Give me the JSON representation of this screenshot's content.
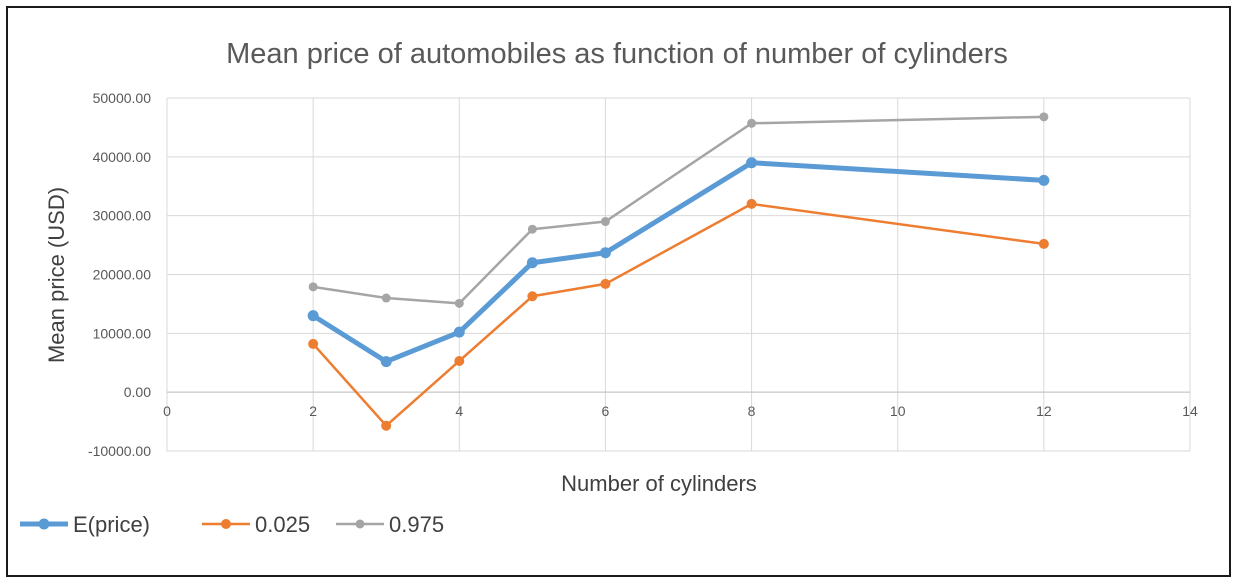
{
  "chart_data": {
    "type": "line",
    "title": "Mean price of automobiles as function of number of cylinders",
    "xlabel": "Number of cylinders",
    "ylabel": "Mean price (USD)",
    "xlim": [
      0,
      14
    ],
    "ylim": [
      -10000,
      50000
    ],
    "x_ticks": [
      "0",
      "2",
      "4",
      "6",
      "8",
      "10",
      "12",
      "14"
    ],
    "y_ticks": [
      "50000.00",
      "40000.00",
      "30000.00",
      "20000.00",
      "10000.00",
      "0.00",
      "-10000.00"
    ],
    "grid": true,
    "legend_position": "bottom-left",
    "x": [
      2,
      3,
      4,
      5,
      6,
      8,
      12
    ],
    "series": [
      {
        "name": "E(price)",
        "color": "#5b9bd5",
        "values": [
          13000,
          5200,
          10200,
          22000,
          23700,
          39000,
          36000
        ]
      },
      {
        "name": "0.025",
        "color": "#ed7d31",
        "values": [
          8200,
          -5700,
          5300,
          16300,
          18400,
          32000,
          25200
        ]
      },
      {
        "name": "0.975",
        "color": "#a5a5a5",
        "values": [
          17900,
          16000,
          15100,
          27700,
          29000,
          45700,
          46800
        ]
      }
    ]
  }
}
